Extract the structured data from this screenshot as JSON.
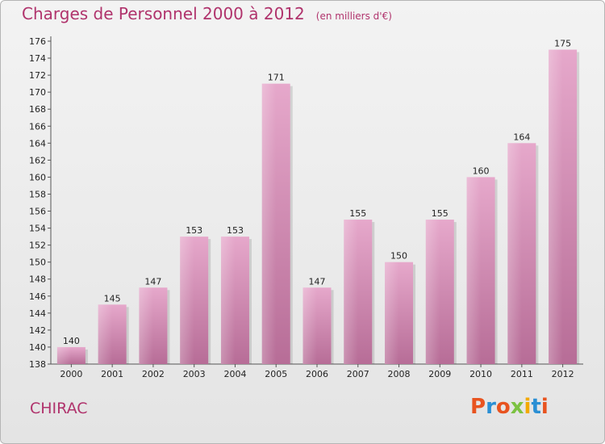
{
  "chart_data": {
    "type": "bar",
    "title": "Charges de Personnel 2000 à 2012",
    "subtitle": "(en milliers d'€)",
    "categories": [
      "2000",
      "2001",
      "2002",
      "2003",
      "2004",
      "2005",
      "2006",
      "2007",
      "2008",
      "2009",
      "2010",
      "2011",
      "2012"
    ],
    "values": [
      140,
      145,
      147,
      153,
      153,
      171,
      147,
      155,
      150,
      155,
      160,
      164,
      175
    ],
    "ylim": [
      138,
      176
    ],
    "yticks": [
      138,
      140,
      142,
      144,
      146,
      148,
      150,
      152,
      154,
      156,
      158,
      160,
      162,
      164,
      166,
      168,
      170,
      172,
      174,
      176
    ],
    "xlabel": "",
    "ylabel": "",
    "grid": false,
    "bar_color": "#d98bb5"
  },
  "footer": {
    "city": "CHIRAC",
    "logo": "Proxiti",
    "logo_colors": [
      "#e8531f",
      "#2a8fd4",
      "#e8531f",
      "#7cc242",
      "#f2a900",
      "#2a8fd4",
      "#e8531f"
    ]
  },
  "theme": {
    "accent": "#b0336c"
  }
}
